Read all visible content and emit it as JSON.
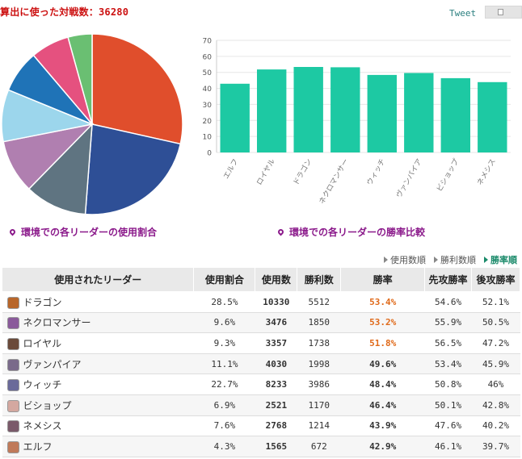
{
  "header": {
    "title": "算出に使った対戦数：36280",
    "tweet": "Tweet"
  },
  "captions": {
    "usage": "環境での各リーダーの使用割合",
    "winrate": "環境での各リーダーの勝率比較"
  },
  "sort": {
    "items": [
      {
        "label": "使用数順",
        "active": false
      },
      {
        "label": "勝利数順",
        "active": false
      },
      {
        "label": "勝率順",
        "active": true
      }
    ]
  },
  "table": {
    "headers": [
      "使用されたリーダー",
      "使用割合",
      "使用数",
      "勝利数",
      "勝率",
      "先攻勝率",
      "後攻勝率"
    ],
    "rows": [
      {
        "leader": "ドラゴン",
        "usage": "28.5%",
        "count": "10330",
        "wins": "5512",
        "winrate": "53.4%",
        "first": "54.6%",
        "second": "52.1%",
        "color": "#b8662a"
      },
      {
        "leader": "ネクロマンサー",
        "usage": "9.6%",
        "count": "3476",
        "wins": "1850",
        "winrate": "53.2%",
        "first": "55.9%",
        "second": "50.5%",
        "color": "#8a5a9a"
      },
      {
        "leader": "ロイヤル",
        "usage": "9.3%",
        "count": "3357",
        "wins": "1738",
        "winrate": "51.8%",
        "first": "56.5%",
        "second": "47.2%",
        "color": "#6a4a3a"
      },
      {
        "leader": "ヴァンパイア",
        "usage": "11.1%",
        "count": "4030",
        "wins": "1998",
        "winrate": "49.6%",
        "first": "53.4%",
        "second": "45.9%",
        "color": "#7a6a8a"
      },
      {
        "leader": "ウィッチ",
        "usage": "22.7%",
        "count": "8233",
        "wins": "3986",
        "winrate": "48.4%",
        "first": "50.8%",
        "second": "46%",
        "color": "#6a6a9a"
      },
      {
        "leader": "ビショップ",
        "usage": "6.9%",
        "count": "2521",
        "wins": "1170",
        "winrate": "46.4%",
        "first": "50.1%",
        "second": "42.8%",
        "color": "#d4a8a0"
      },
      {
        "leader": "ネメシス",
        "usage": "7.6%",
        "count": "2768",
        "wins": "1214",
        "winrate": "43.9%",
        "first": "47.6%",
        "second": "40.2%",
        "color": "#7a5a6a"
      },
      {
        "leader": "エルフ",
        "usage": "4.3%",
        "count": "1565",
        "wins": "672",
        "winrate": "42.9%",
        "first": "46.1%",
        "second": "39.7%",
        "color": "#c07a5a"
      }
    ],
    "highlight_color": "#e06a1a"
  },
  "chart_data": [
    {
      "type": "pie",
      "labels": [
        "ドラゴン",
        "ウィッチ",
        "ヴァンパイア",
        "ネクロマンサー",
        "ロイヤル",
        "ネメシス",
        "ビショップ",
        "エルフ"
      ],
      "values": [
        28.5,
        22.7,
        11.1,
        9.6,
        9.3,
        7.6,
        6.9,
        4.3
      ],
      "colors": [
        "#e04e2c",
        "#2e4f96",
        "#5f7481",
        "#b07fb0",
        "#9cd6ec",
        "#1f73b7",
        "#e5517f",
        "#6abf72"
      ]
    },
    {
      "type": "bar",
      "categories": [
        "エルフ",
        "ロイヤル",
        "ドラゴン",
        "ネクロマンサー",
        "ウィッチ",
        "ヴァンパイア",
        "ビショップ",
        "ネメシス"
      ],
      "values": [
        42.9,
        51.8,
        53.4,
        53.2,
        48.4,
        49.6,
        46.4,
        43.9
      ],
      "ylim": [
        0,
        70
      ],
      "yticks": [
        0,
        10,
        20,
        30,
        40,
        50,
        60,
        70
      ],
      "grid": true,
      "bar_color": "#1dc9a3"
    }
  ]
}
